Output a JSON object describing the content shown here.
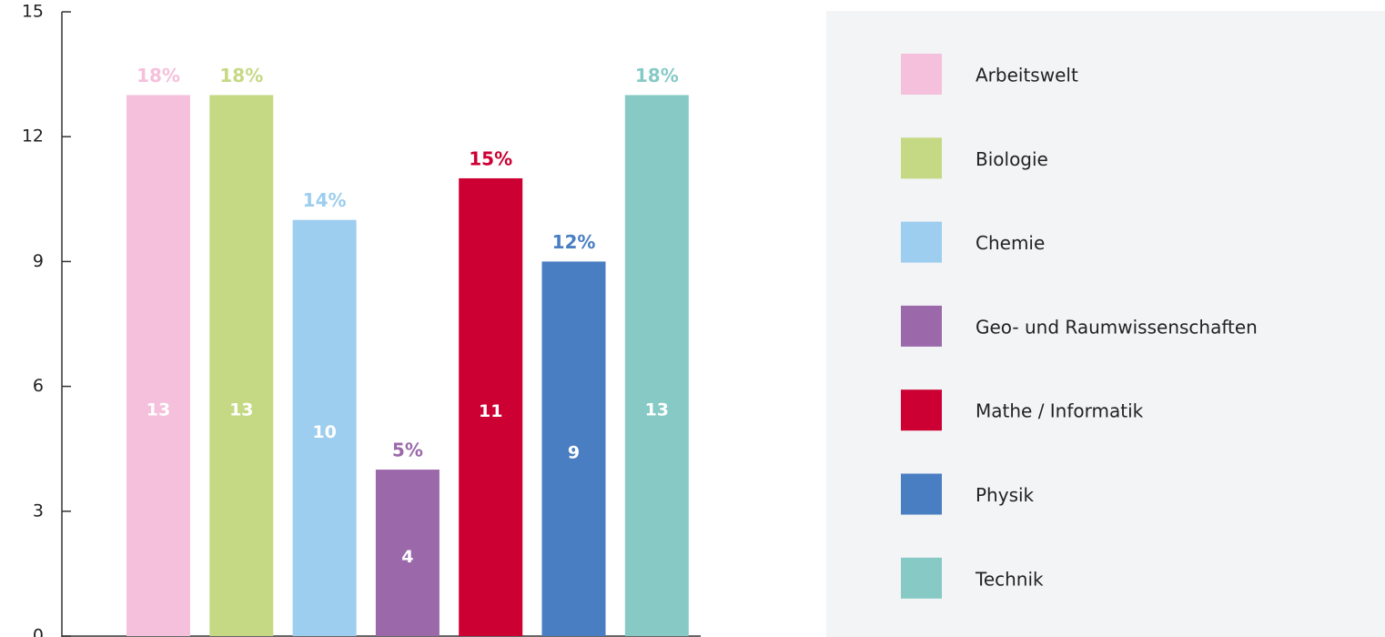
{
  "chart_data": {
    "type": "bar",
    "categories": [
      "Arbeitswelt",
      "Biologie",
      "Chemie",
      "Geo- und Raumwissenschaften",
      "Mathe / Informatik",
      "Physik",
      "Technik"
    ],
    "values": [
      13,
      13,
      10,
      4,
      11,
      9,
      13
    ],
    "share_labels": [
      "18%",
      "18%",
      "14%",
      "5%",
      "15%",
      "12%",
      "18%"
    ],
    "colors": [
      "#f5c0dc",
      "#c5d985",
      "#9dcdef",
      "#9b69aa",
      "#cc0033",
      "#4a7ec2",
      "#87cac5"
    ],
    "ylim": [
      0,
      15
    ],
    "yticks": [
      0,
      3,
      6,
      9,
      12,
      15
    ],
    "grid": false,
    "legend": "right"
  }
}
